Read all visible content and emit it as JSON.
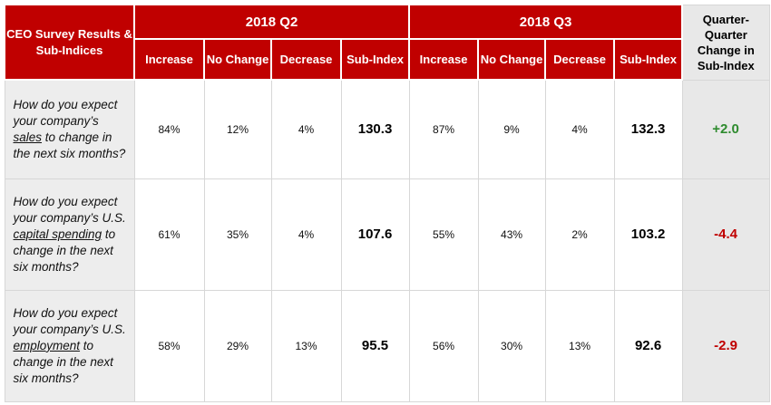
{
  "header": {
    "corner": "CEO Survey Results & Sub-Indices",
    "q2": "2018 Q2",
    "q3": "2018 Q3",
    "change": "Quarter-Quarter Change in Sub-Index",
    "cols": [
      "Increase",
      "No Change",
      "Decrease",
      "Sub-Index"
    ]
  },
  "rows": [
    {
      "q_pre": "How do you expect your company’s ",
      "q_key": "sales",
      "q_post": " to change in the next six months?",
      "q2": [
        "84%",
        "12%",
        "4%",
        "130.3"
      ],
      "q3": [
        "87%",
        "9%",
        "4%",
        "132.3"
      ],
      "change": "+2.0",
      "change_color": "#2e8b2e"
    },
    {
      "q_pre": "How do you expect your company’s U.S. ",
      "q_key": "capital spending",
      "q_post": " to change in the next six months?",
      "q2": [
        "61%",
        "35%",
        "4%",
        "107.6"
      ],
      "q3": [
        "55%",
        "43%",
        "2%",
        "103.2"
      ],
      "change": "-4.4",
      "change_color": "#c00000"
    },
    {
      "q_pre": "How do you expect your company’s U.S. ",
      "q_key": "employment",
      "q_post": " to change in the next six months?",
      "q2": [
        "58%",
        "29%",
        "13%",
        "95.5"
      ],
      "q3": [
        "56%",
        "30%",
        "13%",
        "92.6"
      ],
      "change": "-2.9",
      "change_color": "#c00000"
    }
  ],
  "colors": {
    "header_red": "#c00000",
    "positive": "#2e8b2e",
    "negative": "#c00000"
  }
}
